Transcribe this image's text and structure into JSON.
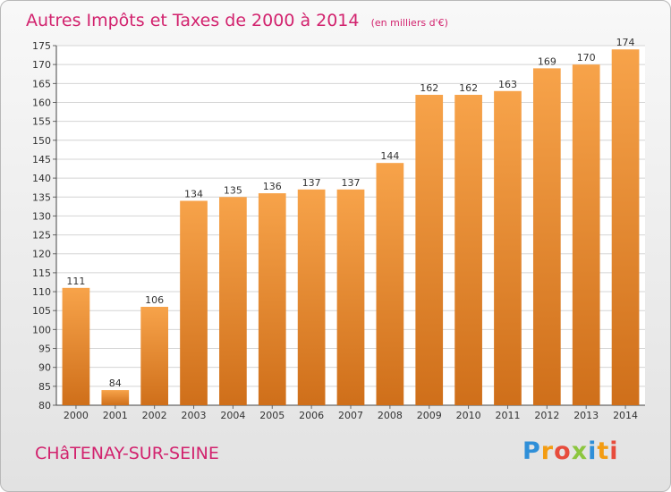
{
  "title": "Autres Impôts et Taxes de 2000 à 2014",
  "subtitle": "(en milliers d'€)",
  "place": "CHâTENAY-SUR-SEINE",
  "brand": {
    "text": "Proxiti",
    "letter_colors": [
      "#2f8fd8",
      "#f39c12",
      "#e74c3c",
      "#8cc63f",
      "#2f8fd8",
      "#f39c12",
      "#e74c3c"
    ]
  },
  "colors": {
    "bar_top": "#f7a34a",
    "bar_bottom": "#cf6f1a",
    "title": "#d2236e"
  },
  "chart_data": {
    "type": "bar",
    "title": "Autres Impôts et Taxes de 2000 à 2014",
    "subtitle": "(en milliers d'€)",
    "categories": [
      "2000",
      "2001",
      "2002",
      "2003",
      "2004",
      "2005",
      "2006",
      "2007",
      "2008",
      "2009",
      "2010",
      "2011",
      "2012",
      "2013",
      "2014"
    ],
    "values": [
      111,
      84,
      106,
      134,
      135,
      136,
      137,
      137,
      144,
      162,
      162,
      163,
      169,
      170,
      174
    ],
    "ylim": [
      80,
      175
    ],
    "yticks": [
      80,
      85,
      90,
      95,
      100,
      105,
      110,
      115,
      120,
      125,
      130,
      135,
      140,
      145,
      150,
      155,
      160,
      165,
      170,
      175
    ],
    "grid": true,
    "xlabel": "",
    "ylabel": ""
  }
}
